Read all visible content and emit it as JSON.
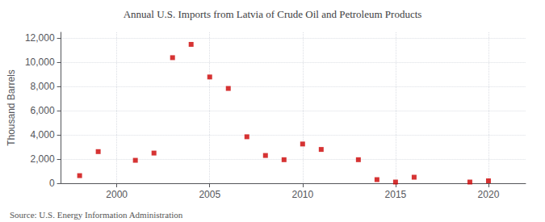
{
  "chart_data": {
    "type": "scatter",
    "title": "Annual U.S. Imports from Latvia of Crude Oil and Petroleum Products",
    "ylabel": "Thousand Barrels",
    "annotation": "Source: U.S. Energy Information Administration",
    "x": [
      1998,
      1999,
      2001,
      2002,
      2003,
      2004,
      2005,
      2006,
      2007,
      2008,
      2009,
      2010,
      2011,
      2013,
      2014,
      2015,
      2016,
      2019,
      2020
    ],
    "values": [
      630,
      2620,
      1900,
      2500,
      10400,
      11500,
      8800,
      7850,
      3850,
      2300,
      1950,
      3250,
      2800,
      1950,
      300,
      100,
      500,
      100,
      200
    ],
    "color": "#cc0000",
    "marker": "square",
    "xlim": [
      1997,
      2022
    ],
    "xticks": [
      2000,
      2005,
      2010,
      2015,
      2020
    ],
    "ylim": [
      0,
      12500
    ],
    "yticks": [
      0,
      {
        "value": 2000,
        "label": "2,000"
      },
      {
        "value": 4000,
        "label": "4,000"
      },
      {
        "value": 6000,
        "label": "6,000"
      },
      {
        "value": 8000,
        "label": "8,000"
      },
      {
        "value": 10000,
        "label": "10,000"
      },
      {
        "value": 12000,
        "label": "12,000"
      }
    ],
    "grid": true
  }
}
